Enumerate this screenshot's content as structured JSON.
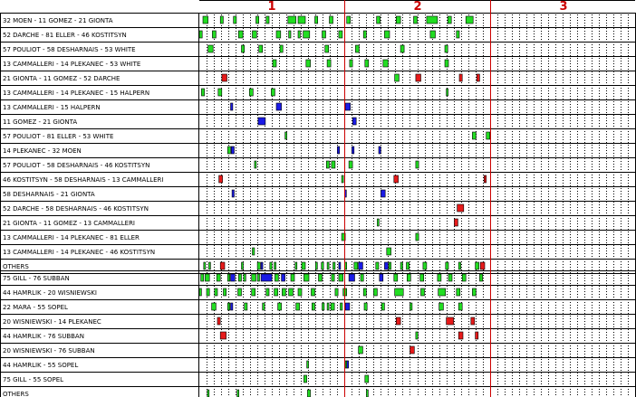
{
  "period_labels": [
    "1",
    "2",
    "3"
  ],
  "colors": {
    "green": "#22dd22",
    "blue": "#1a1ae6",
    "red": "#e61a1a",
    "period_line": "#cc0000",
    "frame": "#000000"
  },
  "forward_lines": [
    {
      "label": "32 MOEN - 11 GOMEZ - 21 GIONTA",
      "shifts": [
        [
          0.5,
          1.2,
          "green"
        ],
        [
          2.9,
          3.3,
          "green"
        ],
        [
          4.7,
          5.1,
          "green"
        ],
        [
          7.8,
          8.2,
          "green"
        ],
        [
          9.2,
          9.6,
          "green"
        ],
        [
          12.2,
          13.3,
          "green"
        ],
        [
          13.6,
          14.6,
          "green"
        ],
        [
          15.9,
          16.3,
          "green"
        ],
        [
          17.9,
          18.4,
          "green"
        ],
        [
          20.3,
          20.8,
          "green"
        ],
        [
          24.4,
          24.9,
          "green"
        ],
        [
          27.1,
          27.7,
          "green"
        ],
        [
          29.5,
          30.0,
          "green"
        ],
        [
          31.3,
          32.8,
          "green"
        ],
        [
          34.2,
          34.7,
          "green"
        ],
        [
          36.7,
          37.7,
          "green"
        ]
      ]
    },
    {
      "label": "52 DARCHE - 81 ELLER - 46 KOSTITSYN",
      "shifts": [
        [
          0.0,
          0.4,
          "green"
        ],
        [
          1.8,
          2.3,
          "green"
        ],
        [
          5.4,
          6.0,
          "green"
        ],
        [
          7.3,
          7.9,
          "green"
        ],
        [
          10.6,
          11.2,
          "green"
        ],
        [
          12.3,
          12.6,
          "green"
        ],
        [
          13.6,
          13.9,
          "green"
        ],
        [
          14.3,
          15.2,
          "green"
        ],
        [
          16.9,
          17.4,
          "green"
        ],
        [
          19.2,
          19.7,
          "green"
        ],
        [
          22.6,
          23.0,
          "green"
        ],
        [
          25.5,
          26.2,
          "green"
        ],
        [
          31.8,
          32.5,
          "green"
        ],
        [
          35.4,
          35.8,
          "green"
        ]
      ]
    },
    {
      "label": "57 POULIOT - 58 DESHARNAIS - 53 WHITE",
      "shifts": [
        [
          1.2,
          1.9,
          "green"
        ],
        [
          5.8,
          6.2,
          "green"
        ],
        [
          8.2,
          8.7,
          "green"
        ],
        [
          11.1,
          11.5,
          "green"
        ],
        [
          17.3,
          17.8,
          "green"
        ],
        [
          21.5,
          22.0,
          "green"
        ],
        [
          27.7,
          28.2,
          "green"
        ],
        [
          33.8,
          34.2,
          "green"
        ]
      ]
    },
    {
      "label": "13 CAMMALLERI - 14 PLEKANEC - 53 WHITE",
      "shifts": [
        [
          10.1,
          10.6,
          "green"
        ],
        [
          14.7,
          15.3,
          "green"
        ],
        [
          17.6,
          18.1,
          "green"
        ],
        [
          20.7,
          21.1,
          "green"
        ],
        [
          22.8,
          23.3,
          "green"
        ],
        [
          25.3,
          26.0,
          "green"
        ],
        [
          33.8,
          34.3,
          "green"
        ]
      ]
    },
    {
      "label": "21 GIONTA - 11 GOMEZ - 52 DARCHE",
      "shifts": [
        [
          3.1,
          3.8,
          "red"
        ],
        [
          26.9,
          27.5,
          "green"
        ],
        [
          29.8,
          30.5,
          "red"
        ],
        [
          35.8,
          36.2,
          "red"
        ],
        [
          38.2,
          38.6,
          "red"
        ]
      ]
    },
    {
      "label": "13 CAMMALLERI - 14 PLEKANEC - 15 HALPERN",
      "shifts": [
        [
          0.3,
          0.7,
          "green"
        ],
        [
          2.6,
          3.1,
          "green"
        ],
        [
          6.9,
          7.4,
          "green"
        ],
        [
          9.9,
          10.4,
          "green"
        ],
        [
          34.0,
          34.2,
          "green"
        ]
      ]
    },
    {
      "label": "13 CAMMALLERI - 15 HALPERN",
      "shifts": [
        [
          4.3,
          4.6,
          "blue"
        ],
        [
          10.6,
          11.3,
          "blue"
        ],
        [
          20.1,
          20.8,
          "blue"
        ]
      ]
    },
    {
      "label": "11 GOMEZ - 21 GIONTA",
      "shifts": [
        [
          8.1,
          9.1,
          "blue"
        ],
        [
          21.1,
          21.6,
          "blue"
        ]
      ]
    },
    {
      "label": "57 POULIOT - 81 ELLER - 53 WHITE",
      "shifts": [
        [
          11.8,
          12.0,
          "green"
        ],
        [
          37.6,
          38.1,
          "green"
        ],
        [
          39.5,
          40.0,
          "green"
        ]
      ]
    },
    {
      "label": "14 PLEKANEC - 32 MOEN",
      "shifts": [
        [
          3.9,
          4.3,
          "green"
        ],
        [
          4.4,
          4.8,
          "blue"
        ],
        [
          19.0,
          19.3,
          "blue"
        ],
        [
          21.0,
          21.3,
          "blue"
        ],
        [
          24.7,
          25.0,
          "blue"
        ]
      ]
    },
    {
      "label": "57 POULIOT - 58 DESHARNAIS - 46 KOSTITSYN",
      "shifts": [
        [
          7.6,
          7.7,
          "green"
        ],
        [
          17.5,
          17.9,
          "green"
        ],
        [
          18.2,
          18.7,
          "green"
        ],
        [
          20.6,
          21.1,
          "green"
        ],
        [
          29.8,
          30.2,
          "green"
        ]
      ]
    },
    {
      "label": "46 KOSTITSYN - 58 DESHARNAIS - 13 CAMMALLERI",
      "shifts": [
        [
          2.7,
          3.2,
          "red"
        ],
        [
          19.6,
          19.8,
          "green"
        ],
        [
          26.8,
          27.4,
          "red"
        ],
        [
          39.2,
          39.5,
          "red"
        ]
      ]
    },
    {
      "label": "58 DESHARNAIS - 21 GIONTA",
      "shifts": [
        [
          4.5,
          4.8,
          "blue"
        ],
        [
          20.0,
          20.2,
          "blue"
        ],
        [
          25.0,
          25.6,
          "blue"
        ]
      ]
    },
    {
      "label": "52 DARCHE - 58 DESHARNAIS - 46 KOSTITSYN",
      "shifts": [
        [
          35.5,
          36.4,
          "red"
        ]
      ]
    },
    {
      "label": "21 GIONTA - 11 GOMEZ - 13 CAMMALLERI",
      "shifts": [
        [
          24.5,
          24.6,
          "green"
        ],
        [
          35.1,
          35.6,
          "red"
        ]
      ]
    },
    {
      "label": "13 CAMMALLERI - 14 PLEKANEC - 81 ELLER",
      "shifts": [
        [
          19.6,
          20.1,
          "green"
        ],
        [
          29.8,
          30.2,
          "green"
        ]
      ]
    },
    {
      "label": "13 CAMMALLERI - 14 PLEKANEC - 46 KOSTITSYN",
      "shifts": [
        [
          7.3,
          7.6,
          "green"
        ],
        [
          25.8,
          26.4,
          "green"
        ]
      ]
    },
    {
      "label": "OTHERS",
      "shifts": [
        [
          0.6,
          0.8,
          "green"
        ],
        [
          1.3,
          1.5,
          "green"
        ],
        [
          2.9,
          3.5,
          "red"
        ],
        [
          5.8,
          6.0,
          "green"
        ],
        [
          8.0,
          8.4,
          "green"
        ],
        [
          8.5,
          8.7,
          "blue"
        ],
        [
          9.7,
          10.0,
          "green"
        ],
        [
          10.3,
          10.5,
          "green"
        ],
        [
          13.2,
          13.4,
          "green"
        ],
        [
          14.1,
          14.6,
          "green"
        ],
        [
          16.0,
          16.2,
          "green"
        ],
        [
          16.8,
          17.1,
          "green"
        ],
        [
          17.6,
          17.8,
          "green"
        ],
        [
          18.4,
          18.7,
          "green"
        ],
        [
          19.2,
          19.4,
          "blue"
        ],
        [
          20.0,
          20.3,
          "green"
        ],
        [
          21.3,
          21.8,
          "green"
        ],
        [
          21.9,
          22.5,
          "blue"
        ],
        [
          24.3,
          24.7,
          "green"
        ],
        [
          25.5,
          26.0,
          "blue"
        ],
        [
          26.1,
          26.4,
          "green"
        ],
        [
          27.7,
          28.0,
          "green"
        ],
        [
          28.5,
          28.9,
          "green"
        ],
        [
          30.8,
          31.3,
          "green"
        ],
        [
          33.9,
          34.3,
          "green"
        ],
        [
          35.7,
          36.0,
          "green"
        ],
        [
          38.0,
          38.5,
          "green"
        ],
        [
          38.7,
          39.3,
          "red"
        ]
      ]
    }
  ],
  "defense_pairs": [
    {
      "label": "75 GILL - 76 SUBBAN",
      "shifts": [
        [
          0.2,
          0.6,
          "green"
        ],
        [
          0.8,
          1.4,
          "green"
        ],
        [
          2.4,
          2.9,
          "green"
        ],
        [
          3.9,
          4.2,
          "green"
        ],
        [
          4.3,
          4.9,
          "blue"
        ],
        [
          5.4,
          5.8,
          "green"
        ],
        [
          6.1,
          6.4,
          "green"
        ],
        [
          7.2,
          7.8,
          "green"
        ],
        [
          8.0,
          8.3,
          "green"
        ],
        [
          8.5,
          10.0,
          "blue"
        ],
        [
          10.4,
          10.9,
          "green"
        ],
        [
          11.3,
          11.8,
          "blue"
        ],
        [
          12.6,
          13.1,
          "green"
        ],
        [
          14.4,
          15.1,
          "green"
        ],
        [
          16.4,
          16.9,
          "green"
        ],
        [
          18.2,
          18.6,
          "green"
        ],
        [
          19.2,
          19.8,
          "green"
        ],
        [
          20.6,
          21.4,
          "blue"
        ],
        [
          22.2,
          22.6,
          "green"
        ],
        [
          24.8,
          25.3,
          "blue"
        ],
        [
          26.8,
          27.3,
          "green"
        ],
        [
          28.6,
          29.1,
          "green"
        ],
        [
          30.4,
          30.9,
          "green"
        ],
        [
          32.8,
          33.3,
          "green"
        ],
        [
          34.3,
          34.8,
          "green"
        ],
        [
          36.2,
          36.7,
          "green"
        ],
        [
          38.6,
          39.0,
          "green"
        ]
      ]
    },
    {
      "label": "44 HAMRLIK - 20 WISNIEWSKI",
      "shifts": [
        [
          0.0,
          0.3,
          "green"
        ],
        [
          1.0,
          1.4,
          "green"
        ],
        [
          2.1,
          2.5,
          "green"
        ],
        [
          3.3,
          3.7,
          "green"
        ],
        [
          5.3,
          5.8,
          "green"
        ],
        [
          7.2,
          7.7,
          "green"
        ],
        [
          9.2,
          9.6,
          "green"
        ],
        [
          10.3,
          10.8,
          "green"
        ],
        [
          11.4,
          11.9,
          "green"
        ],
        [
          12.3,
          12.9,
          "green"
        ],
        [
          13.6,
          14.1,
          "green"
        ],
        [
          15.4,
          15.9,
          "green"
        ],
        [
          18.7,
          19.1,
          "green"
        ],
        [
          19.8,
          20.3,
          "green"
        ],
        [
          22.6,
          23.0,
          "green"
        ],
        [
          24.0,
          24.5,
          "green"
        ],
        [
          26.9,
          28.1,
          "green"
        ],
        [
          30.5,
          31.0,
          "green"
        ],
        [
          32.9,
          33.9,
          "green"
        ],
        [
          35.4,
          35.9,
          "green"
        ],
        [
          37.6,
          38.1,
          "green"
        ]
      ]
    },
    {
      "label": "22 MARA - 55 SOPEL",
      "shifts": [
        [
          1.7,
          2.3,
          "green"
        ],
        [
          3.9,
          4.2,
          "green"
        ],
        [
          4.3,
          4.6,
          "blue"
        ],
        [
          6.2,
          6.6,
          "green"
        ],
        [
          8.7,
          9.0,
          "green"
        ],
        [
          10.8,
          11.3,
          "green"
        ],
        [
          13.3,
          13.8,
          "green"
        ],
        [
          15.5,
          15.9,
          "green"
        ],
        [
          16.9,
          17.2,
          "green"
        ],
        [
          17.6,
          17.8,
          "green"
        ],
        [
          18.1,
          18.6,
          "green"
        ],
        [
          19.4,
          19.7,
          "green"
        ],
        [
          20.1,
          20.7,
          "blue"
        ],
        [
          22.7,
          23.1,
          "green"
        ],
        [
          25.1,
          25.5,
          "green"
        ],
        [
          29.0,
          29.3,
          "green"
        ],
        [
          33.0,
          33.6,
          "green"
        ],
        [
          35.7,
          36.2,
          "green"
        ]
      ]
    },
    {
      "label": "20 WISNIEWSKI - 14 PLEKANEC",
      "shifts": [
        [
          2.5,
          2.9,
          "red"
        ],
        [
          27.1,
          27.7,
          "red"
        ],
        [
          34.0,
          35.0,
          "red"
        ],
        [
          37.4,
          37.9,
          "red"
        ]
      ]
    },
    {
      "label": "44 HAMRLIK - 76 SUBBAN",
      "shifts": [
        [
          2.9,
          3.7,
          "red"
        ],
        [
          29.8,
          30.1,
          "green"
        ],
        [
          35.7,
          36.3,
          "red"
        ],
        [
          38.0,
          38.4,
          "red"
        ]
      ]
    },
    {
      "label": "20 WISNIEWSKI - 76 SUBBAN",
      "shifts": [
        [
          21.9,
          22.5,
          "green"
        ],
        [
          29.0,
          29.6,
          "red"
        ]
      ]
    },
    {
      "label": "44 HAMRLIK - 55 SOPEL",
      "shifts": [
        [
          14.8,
          14.9,
          "green"
        ],
        [
          20.1,
          20.3,
          "green"
        ],
        [
          20.3,
          20.5,
          "blue"
        ]
      ]
    },
    {
      "label": "75 GILL - 55 SOPEL",
      "shifts": [
        [
          14.4,
          14.8,
          "green"
        ],
        [
          22.8,
          23.3,
          "green"
        ]
      ]
    },
    {
      "label": "OTHERS",
      "shifts": [
        [
          1.1,
          1.2,
          "green"
        ],
        [
          5.2,
          5.4,
          "green"
        ],
        [
          14.9,
          15.3,
          "green"
        ],
        [
          23.0,
          23.2,
          "green"
        ]
      ]
    }
  ]
}
